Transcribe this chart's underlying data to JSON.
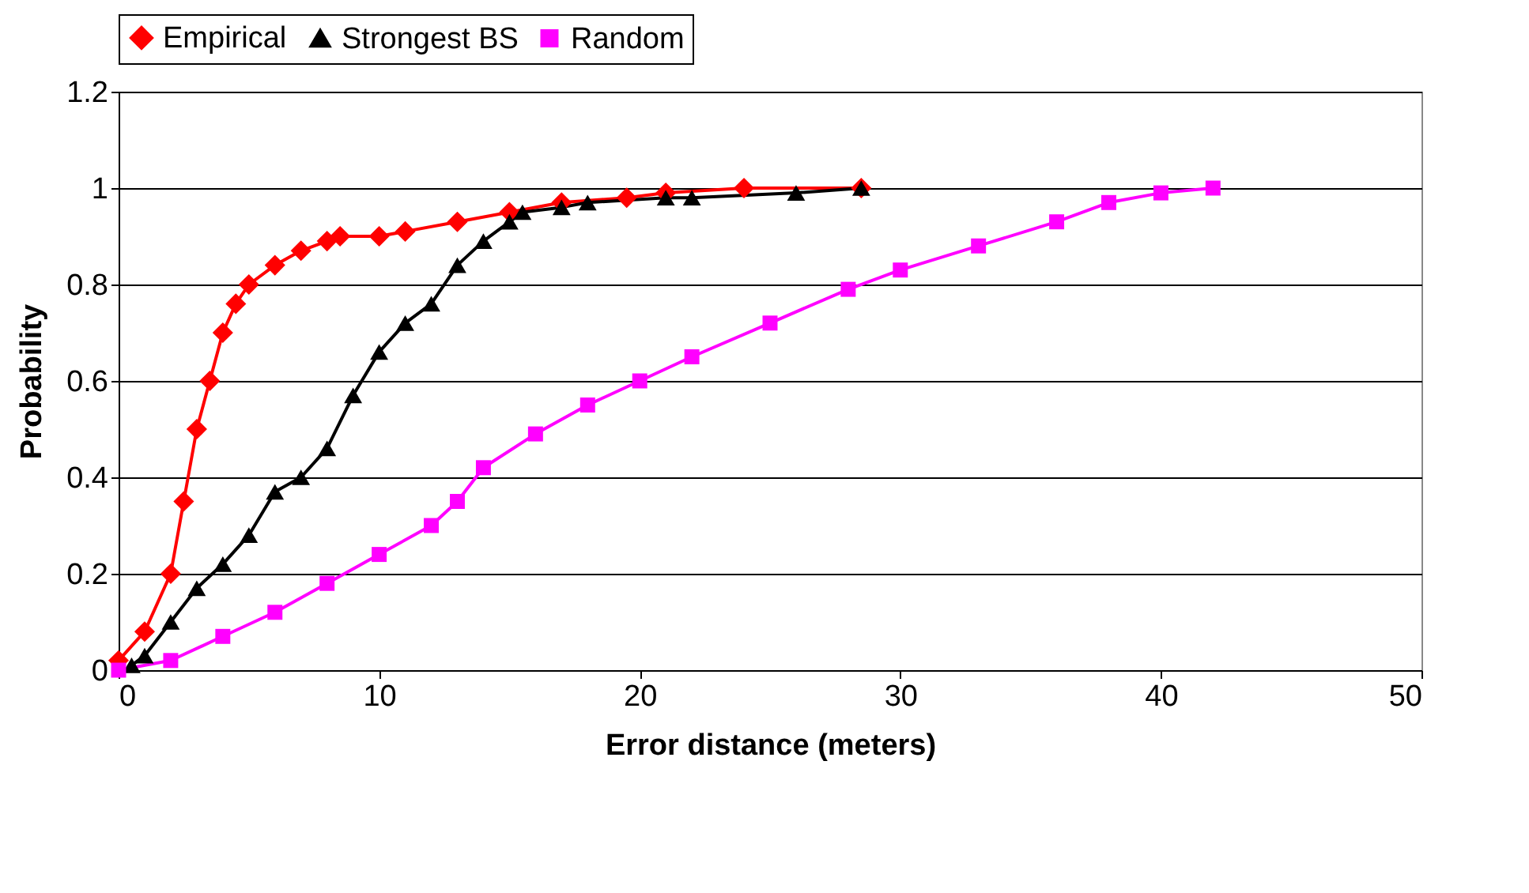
{
  "chart_data": {
    "type": "line",
    "xlabel": "Error distance (meters)",
    "ylabel": "Probability",
    "xlim": [
      0,
      50
    ],
    "xticks": [
      0,
      10,
      20,
      30,
      40,
      50
    ],
    "ylim": [
      0,
      1.2
    ],
    "yticks": [
      0,
      0.2,
      0.4,
      0.6,
      0.8,
      1,
      1.2
    ],
    "grid": "y",
    "legend": "top",
    "series": [
      {
        "name": "Empirical",
        "color": "#ff0000",
        "marker": "diamond",
        "x": [
          0,
          1,
          2,
          2.5,
          3,
          3.5,
          4,
          4.5,
          5,
          6,
          7,
          8,
          8.5,
          10,
          11,
          13,
          15,
          17,
          19.5,
          21,
          24,
          28.5
        ],
        "values": [
          0.02,
          0.08,
          0.2,
          0.35,
          0.5,
          0.6,
          0.7,
          0.76,
          0.8,
          0.84,
          0.87,
          0.89,
          0.9,
          0.9,
          0.91,
          0.93,
          0.95,
          0.97,
          0.98,
          0.99,
          1,
          1
        ]
      },
      {
        "name": "Strongest BS",
        "color": "#000000",
        "marker": "triangle",
        "x": [
          0.5,
          1,
          2,
          3,
          4,
          5,
          6,
          7,
          8,
          9,
          10,
          11,
          12,
          13,
          14,
          15,
          15.5,
          17,
          18,
          21,
          22,
          26,
          28.5
        ],
        "values": [
          0.01,
          0.03,
          0.1,
          0.17,
          0.22,
          0.28,
          0.37,
          0.4,
          0.46,
          0.57,
          0.66,
          0.72,
          0.76,
          0.84,
          0.89,
          0.93,
          0.95,
          0.96,
          0.97,
          0.98,
          0.98,
          0.99,
          1
        ]
      },
      {
        "name": "Random",
        "color": "#ff00ff",
        "marker": "square",
        "x": [
          0,
          2,
          4,
          6,
          8,
          10,
          12,
          13,
          14,
          16,
          18,
          20,
          22,
          25,
          28,
          30,
          33,
          36,
          38,
          40,
          42
        ],
        "values": [
          0,
          0.02,
          0.07,
          0.12,
          0.18,
          0.24,
          0.3,
          0.35,
          0.42,
          0.49,
          0.55,
          0.6,
          0.65,
          0.72,
          0.79,
          0.83,
          0.88,
          0.93,
          0.97,
          0.99,
          1
        ]
      }
    ]
  }
}
